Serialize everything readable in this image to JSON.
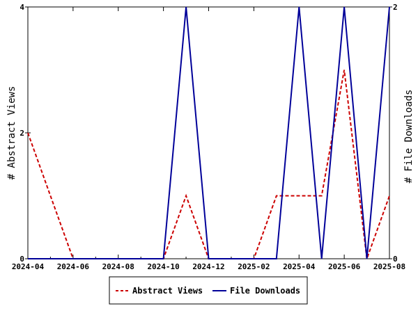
{
  "chart_data": {
    "type": "line",
    "x": [
      "2024-04",
      "2024-05",
      "2024-06",
      "2024-07",
      "2024-08",
      "2024-09",
      "2024-10",
      "2024-11",
      "2024-12",
      "2025-01",
      "2025-02",
      "2025-03",
      "2025-04",
      "2025-05",
      "2025-06",
      "2025-07",
      "2025-08"
    ],
    "x_ticks": [
      "2024-04",
      "2024-06",
      "2024-08",
      "2024-10",
      "2024-12",
      "2025-02",
      "2025-04",
      "2025-06",
      "2025-08"
    ],
    "series": [
      {
        "name": "Abstract Views",
        "axis": "left",
        "color": "#cc0000",
        "dash": "dashed",
        "values": [
          2,
          1,
          0,
          0,
          0,
          0,
          0,
          1,
          0,
          0,
          0,
          1,
          1,
          1,
          3,
          0,
          1
        ]
      },
      {
        "name": "File Downloads",
        "axis": "right",
        "color": "#000099",
        "dash": "solid",
        "values": [
          0,
          0,
          0,
          0,
          0,
          0,
          0,
          2,
          0,
          0,
          0,
          0,
          2,
          0,
          2,
          0,
          2
        ]
      }
    ],
    "ylabel_left": "# Abstract Views",
    "ylabel_right": "# File Downloads",
    "ylim_left": [
      0,
      4
    ],
    "ylim_right": [
      0,
      2
    ],
    "yticks_left": [
      "0",
      "2",
      "4"
    ],
    "yticks_right": [
      "0",
      "2"
    ],
    "grid": false,
    "legend_position": "bottom"
  }
}
